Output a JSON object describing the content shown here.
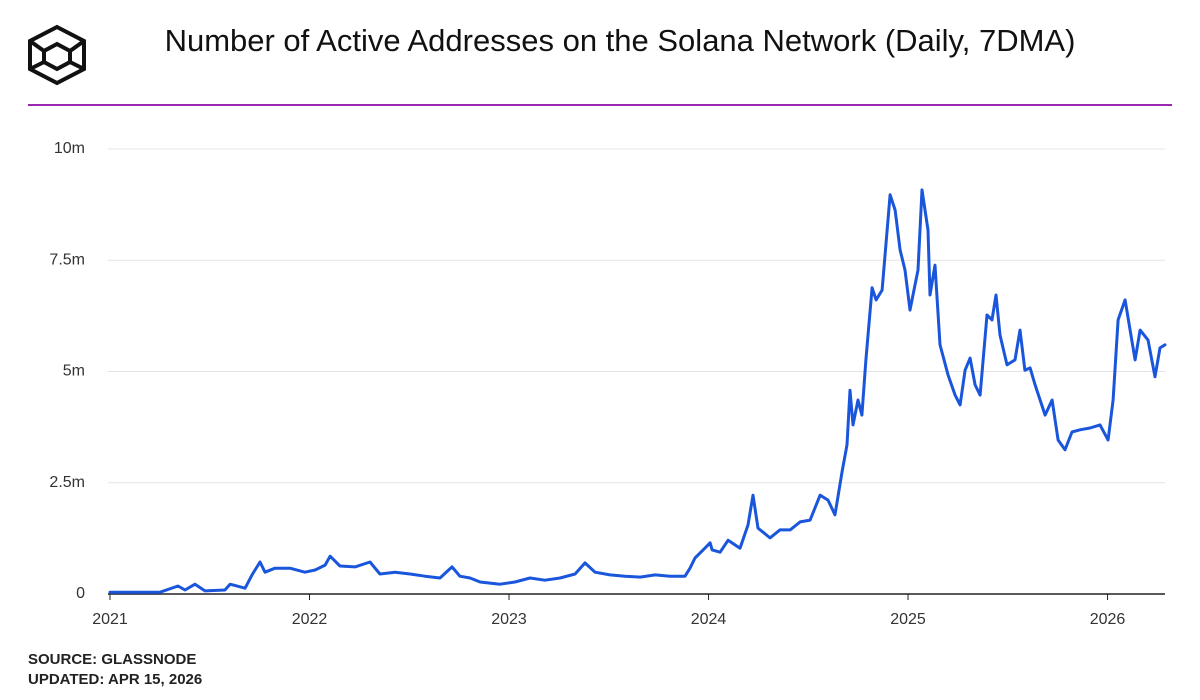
{
  "chart_data": {
    "type": "line",
    "title": "Number of Active Addresses on the Solana Network (Daily, 7DMA)",
    "x": [
      2021.0,
      2021.251,
      2021.341,
      2021.376,
      2021.426,
      2021.476,
      2021.576,
      2021.602,
      2021.677,
      2021.712,
      2021.752,
      2021.777,
      2021.827,
      2021.902,
      2021.977,
      2022.028,
      2022.078,
      2022.103,
      2022.153,
      2022.228,
      2022.303,
      2022.353,
      2022.429,
      2022.504,
      2022.579,
      2022.654,
      2022.714,
      2022.754,
      2022.805,
      2022.855,
      2022.955,
      2023.03,
      2023.105,
      2023.18,
      2023.256,
      2023.331,
      2023.381,
      2023.431,
      2023.506,
      2023.581,
      2023.657,
      2023.732,
      2023.807,
      2023.882,
      2023.907,
      2023.932,
      2023.982,
      2024.008,
      2024.018,
      2024.058,
      2024.098,
      2024.158,
      2024.198,
      2024.223,
      2024.248,
      2024.308,
      2024.358,
      2024.409,
      2024.459,
      2024.509,
      2024.559,
      2024.599,
      2024.634,
      2024.669,
      2024.694,
      2024.709,
      2024.724,
      2024.749,
      2024.769,
      2024.789,
      2024.82,
      2024.84,
      2024.87,
      2024.91,
      2024.935,
      2024.96,
      2024.985,
      2025.01,
      2025.05,
      2025.07,
      2025.1,
      2025.11,
      2025.135,
      2025.16,
      2025.201,
      2025.236,
      2025.261,
      2025.286,
      2025.311,
      2025.336,
      2025.361,
      2025.396,
      2025.421,
      2025.441,
      2025.461,
      2025.496,
      2025.536,
      2025.561,
      2025.586,
      2025.612,
      2025.637,
      2025.687,
      2025.722,
      2025.752,
      2025.787,
      2025.822,
      2025.862,
      2025.912,
      2025.962,
      2026.003,
      2026.028,
      2026.053,
      2026.088,
      2026.113,
      2026.138,
      2026.163,
      2026.203,
      2026.238,
      2026.263,
      2026.288
    ],
    "series": [
      {
        "color": "#1a56db",
        "values": [
          40000,
          40000,
          180000,
          90000,
          220000,
          70000,
          90000,
          220000,
          130000,
          430000,
          720000,
          490000,
          580000,
          580000,
          490000,
          540000,
          650000,
          850000,
          630000,
          610000,
          720000,
          450000,
          490000,
          450000,
          400000,
          360000,
          610000,
          400000,
          360000,
          270000,
          220000,
          270000,
          360000,
          310000,
          360000,
          450000,
          700000,
          490000,
          430000,
          400000,
          380000,
          430000,
          400000,
          400000,
          580000,
          810000,
          1030000,
          1150000,
          990000,
          940000,
          1210000,
          1030000,
          1550000,
          2220000,
          1480000,
          1260000,
          1440000,
          1440000,
          1620000,
          1660000,
          2220000,
          2110000,
          1780000,
          2740000,
          3350000,
          4580000,
          3800000,
          4360000,
          4020000,
          5260000,
          6880000,
          6610000,
          6830000,
          8970000,
          8630000,
          7730000,
          7280000,
          6380000,
          7280000,
          9080000,
          8180000,
          6720000,
          7390000,
          5600000,
          4920000,
          4470000,
          4250000,
          5030000,
          5300000,
          4700000,
          4470000,
          6270000,
          6160000,
          6720000,
          5820000,
          5150000,
          5260000,
          5930000,
          5030000,
          5080000,
          4700000,
          4020000,
          4360000,
          3460000,
          3240000,
          3640000,
          3690000,
          3730000,
          3800000,
          3460000,
          4360000,
          6160000,
          6610000,
          5930000,
          5260000,
          5930000,
          5710000,
          4880000,
          5530000,
          5600000
        ]
      }
    ],
    "xlim": [
      2021,
      2026.288
    ],
    "xticks": [
      2021,
      2022,
      2023,
      2024,
      2025,
      2026
    ],
    "ylim": [
      0,
      10000000
    ],
    "yticks": [
      0,
      {
        "value": 2500000,
        "label": "2.5m"
      },
      {
        "value": 5000000,
        "label": "5m"
      },
      {
        "value": 7500000,
        "label": "7.5m"
      },
      {
        "value": 10000000,
        "label": "10m"
      }
    ],
    "grid": true
  },
  "footer": {
    "source": "SOURCE: GLASSNODE",
    "updated": "UPDATED: APR 15, 2026"
  }
}
